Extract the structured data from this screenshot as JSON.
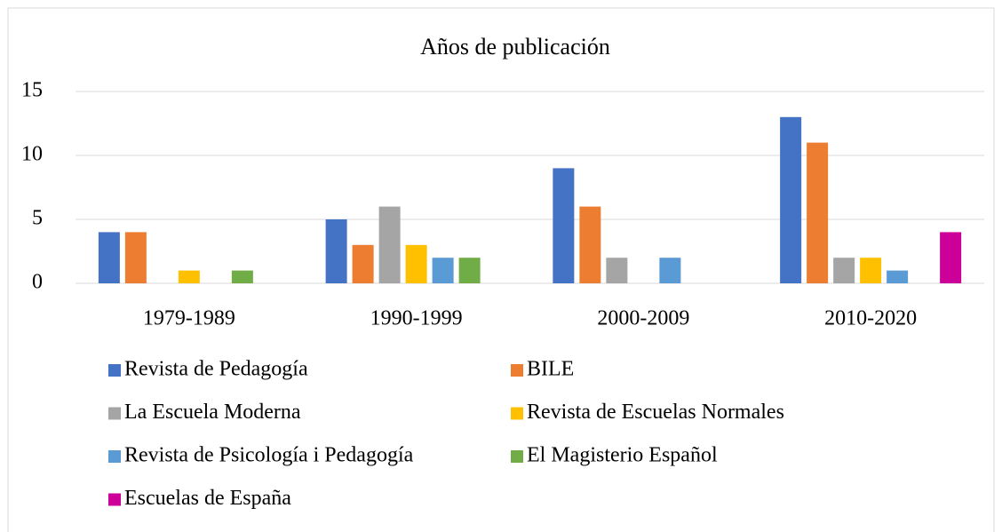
{
  "chart_data": {
    "type": "bar",
    "title": "Años de publicación",
    "categories": [
      "1979-1989",
      "1990-1999",
      "2000-2009",
      "2010-2020"
    ],
    "series": [
      {
        "name": "Revista de Pedagogía",
        "color": "#4472c4",
        "values": [
          4,
          5,
          9,
          13
        ]
      },
      {
        "name": "BILE",
        "color": "#ed7d31",
        "values": [
          4,
          3,
          6,
          11
        ]
      },
      {
        "name": "La Escuela Moderna",
        "color": "#a5a5a5",
        "values": [
          null,
          6,
          2,
          2
        ]
      },
      {
        "name": "Revista de Escuelas Normales",
        "color": "#ffc000",
        "values": [
          1,
          3,
          null,
          2
        ]
      },
      {
        "name": "Revista de Psicología i Pedagogía",
        "color": "#5b9bd5",
        "values": [
          null,
          2,
          2,
          1
        ]
      },
      {
        "name": "El Magisterio Español",
        "color": "#70ad47",
        "values": [
          1,
          2,
          null,
          null
        ]
      },
      {
        "name": "Escuelas de España",
        "color": "#cc0099",
        "values": [
          null,
          null,
          null,
          4
        ]
      }
    ],
    "ylim": [
      0,
      15
    ],
    "yticks": [
      0,
      5,
      10,
      15
    ],
    "grid": true,
    "legend": "bottom"
  }
}
